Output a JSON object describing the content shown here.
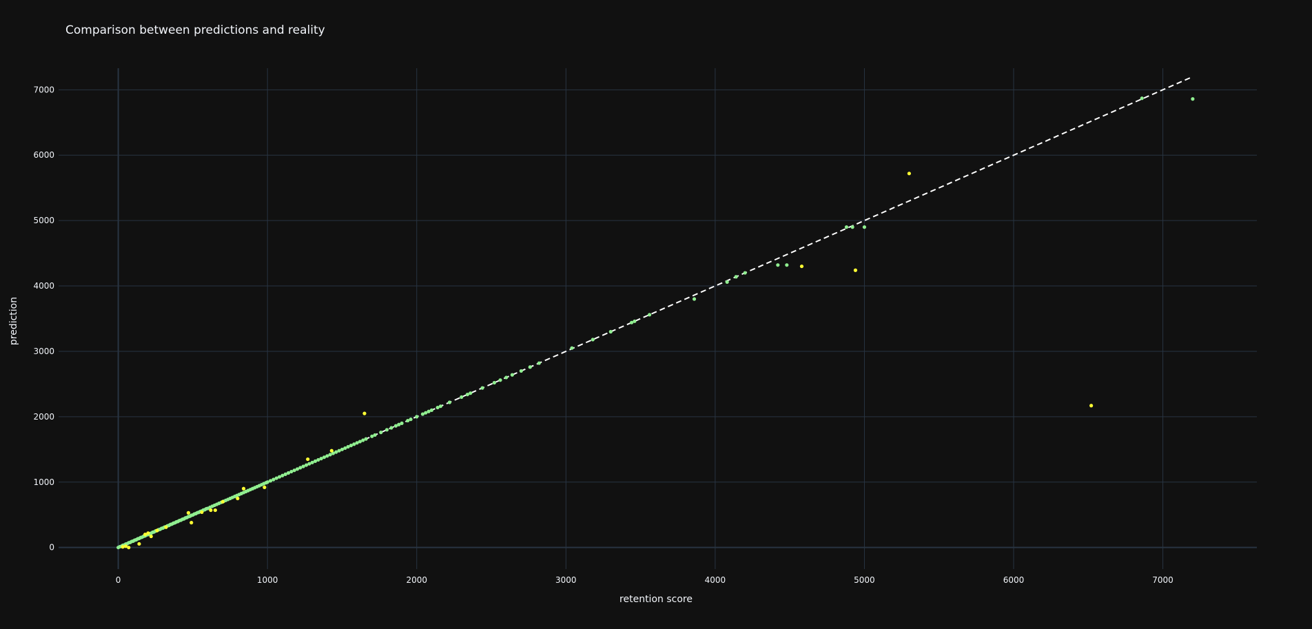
{
  "chart_data": {
    "type": "scatter",
    "title": "Comparison between predictions and reality",
    "xlabel": "retention score",
    "ylabel": "prediction",
    "xlim": [
      -400,
      7630
    ],
    "ylim": [
      -330,
      7330
    ],
    "xticks": [
      0,
      1000,
      2000,
      3000,
      4000,
      5000,
      6000,
      7000
    ],
    "yticks": [
      0,
      1000,
      2000,
      3000,
      4000,
      5000,
      6000,
      7000
    ],
    "xtick_labels": [
      "0",
      "1000",
      "2000",
      "3000",
      "4000",
      "5000",
      "6000",
      "7000"
    ],
    "ytick_labels": [
      "0",
      "1000",
      "2000",
      "3000",
      "4000",
      "5000",
      "6000",
      "7000"
    ],
    "grid": true,
    "legend": "none",
    "reference_line": {
      "x": [
        0,
        7200
      ],
      "y": [
        0,
        7200
      ],
      "style": "dashed",
      "color": "#ffffff"
    },
    "colors": {
      "background": "#111111",
      "grid": "#283442",
      "zeroline": "#283442",
      "text": "#f2f5fa",
      "accurate_points": "#90ee90",
      "inaccurate_points": "#ffff33"
    },
    "series": [
      {
        "color": "#90ee90",
        "points": [
          [
            0,
            0
          ],
          [
            10,
            12
          ],
          [
            20,
            18
          ],
          [
            30,
            32
          ],
          [
            40,
            38
          ],
          [
            50,
            52
          ],
          [
            60,
            58
          ],
          [
            70,
            72
          ],
          [
            80,
            78
          ],
          [
            90,
            92
          ],
          [
            100,
            98
          ],
          [
            110,
            112
          ],
          [
            120,
            118
          ],
          [
            130,
            132
          ],
          [
            140,
            138
          ],
          [
            150,
            152
          ],
          [
            160,
            158
          ],
          [
            170,
            172
          ],
          [
            180,
            178
          ],
          [
            190,
            192
          ],
          [
            200,
            198
          ],
          [
            210,
            212
          ],
          [
            220,
            218
          ],
          [
            230,
            232
          ],
          [
            240,
            238
          ],
          [
            250,
            252
          ],
          [
            260,
            258
          ],
          [
            270,
            272
          ],
          [
            280,
            278
          ],
          [
            290,
            292
          ],
          [
            300,
            298
          ],
          [
            310,
            312
          ],
          [
            320,
            318
          ],
          [
            330,
            332
          ],
          [
            340,
            338
          ],
          [
            350,
            352
          ],
          [
            360,
            358
          ],
          [
            370,
            372
          ],
          [
            380,
            378
          ],
          [
            390,
            392
          ],
          [
            400,
            398
          ],
          [
            410,
            412
          ],
          [
            420,
            418
          ],
          [
            430,
            432
          ],
          [
            440,
            438
          ],
          [
            450,
            452
          ],
          [
            460,
            458
          ],
          [
            470,
            472
          ],
          [
            480,
            478
          ],
          [
            490,
            492
          ],
          [
            500,
            498
          ],
          [
            510,
            512
          ],
          [
            520,
            518
          ],
          [
            530,
            532
          ],
          [
            540,
            538
          ],
          [
            550,
            552
          ],
          [
            560,
            558
          ],
          [
            570,
            572
          ],
          [
            580,
            578
          ],
          [
            590,
            592
          ],
          [
            600,
            598
          ],
          [
            615,
            615
          ],
          [
            630,
            630
          ],
          [
            645,
            645
          ],
          [
            660,
            660
          ],
          [
            675,
            675
          ],
          [
            690,
            690
          ],
          [
            705,
            705
          ],
          [
            720,
            720
          ],
          [
            735,
            735
          ],
          [
            750,
            750
          ],
          [
            765,
            765
          ],
          [
            780,
            780
          ],
          [
            795,
            795
          ],
          [
            810,
            810
          ],
          [
            825,
            825
          ],
          [
            840,
            840
          ],
          [
            855,
            855
          ],
          [
            870,
            870
          ],
          [
            885,
            885
          ],
          [
            900,
            900
          ],
          [
            915,
            915
          ],
          [
            930,
            930
          ],
          [
            945,
            945
          ],
          [
            960,
            960
          ],
          [
            975,
            975
          ],
          [
            990,
            990
          ],
          [
            1000,
            1000
          ],
          [
            1020,
            1020
          ],
          [
            1040,
            1040
          ],
          [
            1060,
            1060
          ],
          [
            1080,
            1080
          ],
          [
            1100,
            1100
          ],
          [
            1120,
            1120
          ],
          [
            1140,
            1140
          ],
          [
            1160,
            1160
          ],
          [
            1180,
            1180
          ],
          [
            1200,
            1200
          ],
          [
            1220,
            1220
          ],
          [
            1240,
            1240
          ],
          [
            1260,
            1260
          ],
          [
            1280,
            1280
          ],
          [
            1300,
            1300
          ],
          [
            1320,
            1320
          ],
          [
            1340,
            1340
          ],
          [
            1360,
            1360
          ],
          [
            1380,
            1380
          ],
          [
            1400,
            1400
          ],
          [
            1420,
            1420
          ],
          [
            1440,
            1440
          ],
          [
            1460,
            1460
          ],
          [
            1480,
            1480
          ],
          [
            1500,
            1500
          ],
          [
            1520,
            1520
          ],
          [
            1540,
            1540
          ],
          [
            1560,
            1560
          ],
          [
            1580,
            1580
          ],
          [
            1600,
            1600
          ],
          [
            1620,
            1620
          ],
          [
            1640,
            1640
          ],
          [
            1660,
            1660
          ],
          [
            1700,
            1700
          ],
          [
            1720,
            1720
          ],
          [
            1760,
            1760
          ],
          [
            1800,
            1800
          ],
          [
            1830,
            1830
          ],
          [
            1860,
            1860
          ],
          [
            1880,
            1880
          ],
          [
            1900,
            1900
          ],
          [
            1940,
            1940
          ],
          [
            1960,
            1960
          ],
          [
            2000,
            2000
          ],
          [
            2040,
            2040
          ],
          [
            2060,
            2060
          ],
          [
            2080,
            2080
          ],
          [
            2100,
            2100
          ],
          [
            2140,
            2140
          ],
          [
            2160,
            2160
          ],
          [
            2220,
            2220
          ],
          [
            2300,
            2300
          ],
          [
            2340,
            2340
          ],
          [
            2360,
            2360
          ],
          [
            2440,
            2440
          ],
          [
            2520,
            2520
          ],
          [
            2560,
            2560
          ],
          [
            2600,
            2600
          ],
          [
            2640,
            2640
          ],
          [
            2700,
            2700
          ],
          [
            2760,
            2760
          ],
          [
            2820,
            2820
          ],
          [
            3040,
            3050
          ],
          [
            3180,
            3180
          ],
          [
            3300,
            3300
          ],
          [
            3440,
            3440
          ],
          [
            3460,
            3460
          ],
          [
            3560,
            3560
          ],
          [
            3860,
            3800
          ],
          [
            4080,
            4060
          ],
          [
            4140,
            4140
          ],
          [
            4200,
            4200
          ],
          [
            4420,
            4320
          ],
          [
            4480,
            4320
          ],
          [
            4880,
            4900
          ],
          [
            4920,
            4900
          ],
          [
            5000,
            4900
          ],
          [
            6860,
            6870
          ],
          [
            7200,
            6860
          ]
        ]
      },
      {
        "color": "#ffff33",
        "points": [
          [
            30,
            10
          ],
          [
            50,
            20
          ],
          [
            70,
            0
          ],
          [
            140,
            55
          ],
          [
            180,
            200
          ],
          [
            200,
            220
          ],
          [
            220,
            170
          ],
          [
            260,
            260
          ],
          [
            320,
            310
          ],
          [
            470,
            530
          ],
          [
            490,
            380
          ],
          [
            560,
            540
          ],
          [
            620,
            570
          ],
          [
            650,
            570
          ],
          [
            700,
            700
          ],
          [
            800,
            750
          ],
          [
            840,
            900
          ],
          [
            980,
            920
          ],
          [
            1270,
            1350
          ],
          [
            1430,
            1480
          ],
          [
            1650,
            2050
          ],
          [
            4580,
            4300
          ],
          [
            4940,
            4240
          ],
          [
            5300,
            5720
          ],
          [
            6520,
            2170
          ]
        ]
      }
    ]
  }
}
